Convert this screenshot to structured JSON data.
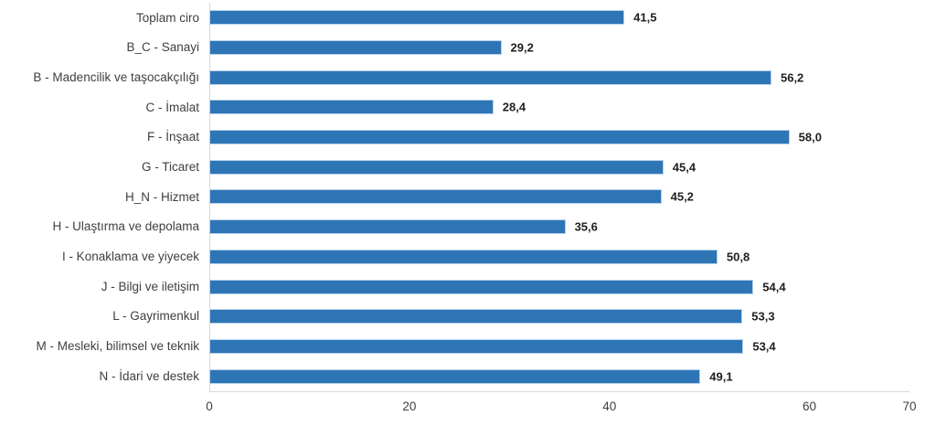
{
  "chart": {
    "background_color": "#ffffff",
    "bar_color": "#2e75b6",
    "bar_border_color": "#b7d1ea",
    "axis_line_color": "#d9d9d9",
    "category_label_color": "#3f3f3f",
    "tick_label_color": "#404040",
    "value_label_color": "#1f1f1f"
  },
  "chart_data": {
    "type": "bar",
    "orientation": "horizontal",
    "title": "",
    "xlabel": "",
    "ylabel": "",
    "xlim": [
      0,
      70
    ],
    "x_tick_values": [
      0,
      20,
      40,
      60,
      70
    ],
    "x_tick_labels": [
      "0",
      "20",
      "40",
      "60",
      "70"
    ],
    "grid": false,
    "legend": false,
    "data_labels": true,
    "categories": [
      "Toplam ciro",
      "B_C - Sanayi",
      "B - Madencilik ve taşocakçılığı",
      "C - İmalat",
      "F - İnşaat",
      "G - Ticaret",
      "H_N - Hizmet",
      "H - Ulaştırma ve depolama",
      "I - Konaklama ve yiyecek",
      "J - Bilgi ve iletişim",
      "L - Gayrimenkul",
      "M - Mesleki, bilimsel ve teknik",
      "N - İdari ve destek"
    ],
    "values": [
      41.5,
      29.2,
      56.2,
      28.4,
      58.0,
      45.4,
      45.2,
      35.6,
      50.8,
      54.4,
      53.3,
      53.4,
      49.1
    ],
    "value_labels": [
      "41,5",
      "29,2",
      "56,2",
      "28,4",
      "58,0",
      "45,4",
      "45,2",
      "35,6",
      "50,8",
      "54,4",
      "53,3",
      "53,4",
      "49,1"
    ]
  }
}
